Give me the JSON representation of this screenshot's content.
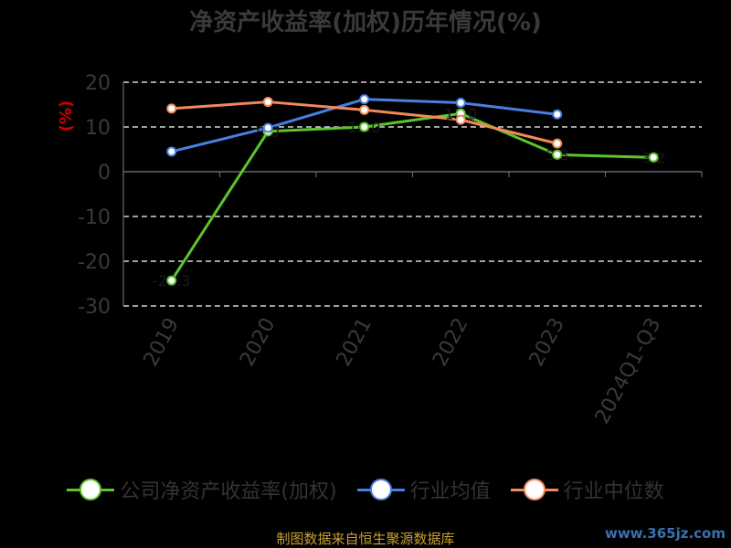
{
  "title": "净资产收益率(加权)历年情况(%)",
  "source": "制图数据来自恒生聚源数据库",
  "watermark": "www.365jz.com",
  "chart_data": {
    "type": "line",
    "categories": [
      "2019",
      "2020",
      "2021",
      "2022",
      "2023",
      "2024Q1-Q3"
    ],
    "ylabel": "(%)",
    "ylim": [
      -30,
      20
    ],
    "yticks": [
      -30,
      -20,
      -10,
      0,
      10,
      20
    ],
    "grid": "horizontal-dashed",
    "legend_position": "bottom",
    "series": [
      {
        "name": "公司净资产收益率(加权)",
        "color": "#5cc52b",
        "values": [
          -24.3,
          9.0,
          10.0,
          13.0,
          3.8,
          3.2
        ],
        "labels": [
          "-24.3",
          "9.0",
          "10.0",
          "13.0",
          "3.8",
          "3.2"
        ]
      },
      {
        "name": "行业均值",
        "color": "#4a7fe0",
        "values": [
          4.5,
          9.8,
          16.2,
          15.4,
          12.8,
          null
        ]
      },
      {
        "name": "行业中位数",
        "color": "#f4885a",
        "values": [
          14.1,
          15.6,
          13.8,
          11.6,
          6.3,
          null
        ]
      }
    ]
  }
}
